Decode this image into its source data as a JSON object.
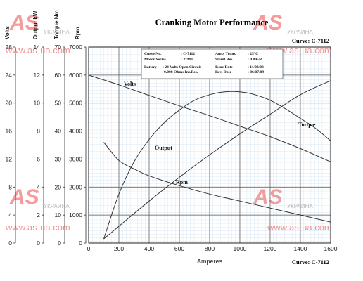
{
  "chart_data": {
    "type": "line",
    "title": "Cranking Motor Performance",
    "curve_label_top": "Curve: C-7112",
    "curve_label_bottom": "Curve: C-7112",
    "xlabel": "Amperes",
    "xlim": [
      0,
      1600
    ],
    "x_ticks": [
      0,
      200,
      400,
      600,
      800,
      1000,
      1200,
      1400,
      1600
    ],
    "grid": true,
    "axes": [
      {
        "label": "Volts",
        "ylim": [
          0,
          28
        ],
        "ticks": [
          0,
          4,
          8,
          12,
          16,
          20,
          24,
          28
        ]
      },
      {
        "label": "Output kW",
        "ylim": [
          0,
          14
        ],
        "ticks": [
          0,
          2,
          4,
          6,
          8,
          10,
          12,
          14
        ]
      },
      {
        "label": "Torque Nm",
        "ylim": [
          0,
          70
        ],
        "ticks": [
          0,
          10,
          20,
          30,
          40,
          50,
          60,
          70
        ]
      },
      {
        "label": "Rpm",
        "ylim": [
          0,
          7000
        ],
        "ticks": [
          0,
          1000,
          2000,
          3000,
          4000,
          5000,
          6000,
          7000
        ]
      }
    ],
    "series": [
      {
        "name": "Volts",
        "axis": "Volts",
        "color": "#333333",
        "x": [
          0,
          200,
          400,
          600,
          800,
          1000,
          1200,
          1400,
          1600
        ],
        "y": [
          24.0,
          22.6,
          21.1,
          19.6,
          18.2,
          16.7,
          15.2,
          13.5,
          11.6
        ]
      },
      {
        "name": "Torque",
        "axis": "Torque Nm",
        "color": "#333333",
        "x": [
          100,
          200,
          400,
          600,
          800,
          1000,
          1200,
          1400,
          1600
        ],
        "y": [
          1.5,
          6.0,
          15.0,
          23.5,
          31.5,
          39.0,
          46.0,
          53.0,
          58.0
        ]
      },
      {
        "name": "Output",
        "axis": "Output kW",
        "color": "#333333",
        "x": [
          100,
          200,
          300,
          400,
          500,
          600,
          700,
          800,
          900,
          1000,
          1100,
          1200,
          1300,
          1400,
          1500,
          1600
        ],
        "y": [
          0.3,
          3.5,
          5.8,
          7.4,
          8.6,
          9.5,
          10.2,
          10.6,
          10.8,
          10.8,
          10.6,
          10.2,
          9.6,
          8.9,
          8.2,
          7.3
        ]
      },
      {
        "name": "Rpm",
        "axis": "Rpm",
        "color": "#333333",
        "x": [
          100,
          200,
          300,
          400,
          600,
          800,
          1000,
          1200,
          1400,
          1600
        ],
        "y": [
          3600,
          2950,
          2650,
          2400,
          2050,
          1750,
          1500,
          1250,
          1000,
          750
        ]
      }
    ],
    "info_box": {
      "curve_no_label": "Curve No.",
      "curve_no_value": ": C-7112",
      "amb_temp_label": "Amb. Temp.",
      "amb_temp_value": ": 25°C",
      "motor_series_label": "Motor Series",
      "motor_series_value": ": 37MT",
      "shunt_res_label": "Shunt Res.",
      "shunt_res_value": ": 0.005M",
      "battery_label": "Battery",
      "battery_value": ": 24 Volts Open Circuit",
      "battery_value2": "0.008 Ohms Int.Res.",
      "issue_date_label": "Issue Date",
      "issue_date_value": ": 11/03/03",
      "rev_date_label": "Rev. Date",
      "rev_date_value": ": 06/07/09"
    }
  },
  "watermark": {
    "logo_text": "AS",
    "url": "www.as-ua.com",
    "country": "УКРАИНА",
    "color": "#ee4a4a"
  }
}
